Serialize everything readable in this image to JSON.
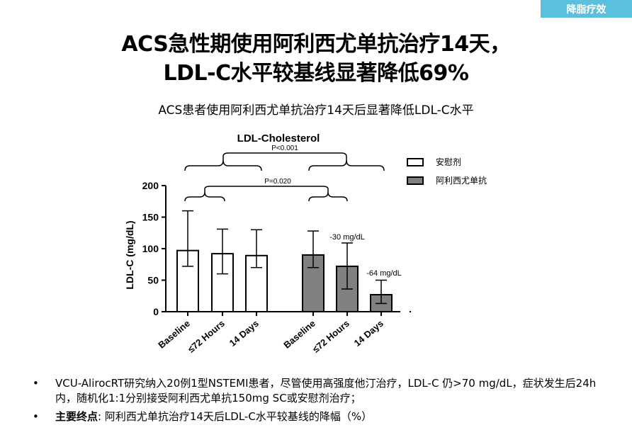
{
  "tag": "降脂疗效",
  "title_line1": "ACS急性期使用阿利西尤单抗治疗14天，",
  "title_line2": "LDL-C水平较基线显著降低69%",
  "subtitle": "ACS患者使用阿利西尤单抗治疗14天后显著降低LDL-C水平",
  "bullets": [
    {
      "bold": "",
      "text": "VCU-AlirocRT研究纳入20例1型NSTEMI患者，尽管使用高强度他汀治疗，LDL-C 仍>70 mg/dL，症状发生后24h内，随机化1:1分别接受阿利西尤单抗150mg SC或安慰剂治疗；"
    },
    {
      "bold": "主要终点",
      "text": ": 阿利西尤单抗治疗14天后LDL-C水平较基线的降幅（%）"
    }
  ],
  "colors": {
    "tag_bg": "#5bc0de",
    "placebo_fill": "#ffffff",
    "alirocumab_fill": "#808080"
  },
  "chart_data": {
    "type": "bar",
    "title": "LDL-Cholesterol",
    "xlabel": "",
    "ylabel": "LDL-C (mg/dL)",
    "ylim": [
      0,
      200
    ],
    "yticks": [
      0,
      50,
      100,
      150,
      200
    ],
    "grid": false,
    "legend_position": "top-right",
    "series": [
      {
        "name": "安慰剂",
        "categories": [
          "Baseline",
          "≤72 Hours",
          "14 Days"
        ],
        "values": [
          97,
          92,
          89
        ],
        "error_low": [
          72,
          60,
          70
        ],
        "error_high": [
          160,
          131,
          130
        ]
      },
      {
        "name": "阿利西尤单抗",
        "categories": [
          "Baseline",
          "≤72 Hours",
          "14 Days"
        ],
        "values": [
          90,
          72,
          27
        ],
        "error_low": [
          70,
          36,
          13
        ],
        "error_high": [
          128,
          109,
          50
        ]
      }
    ],
    "annotations": {
      "p_overall": "P<0.001",
      "p_72h": "P=0.020",
      "diff_72h": "-30 mg/dL",
      "diff_14d": "-64 mg/dL"
    }
  }
}
